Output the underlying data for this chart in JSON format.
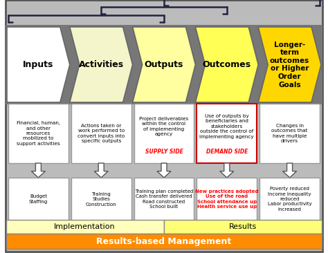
{
  "arrow_colors": [
    "#FFFFFF",
    "#F5F5CC",
    "#FFFFA0",
    "#FFFF55",
    "#FFD700"
  ],
  "arrow_labels": [
    "Inputs",
    "Activities",
    "Outputs",
    "Outcomes",
    "Longer-\nterm\noutcomes\nor Higher\nOrder\nGoals"
  ],
  "desc_texts": [
    "Financial, human,\nand other\nresources\nmobilized to\nsupport activities",
    "Actions taken or\nwork performed to\nconvert inputs into\nspecific outputs",
    "Project deliverables\nwithin the control\nof implementing\nagency",
    "Use of outputs by\nbeneficiaries and\nstakeholders\noutside the control of\nimplementing agency",
    "Changes in\noutcomes that\nhave multiple\ndrivers"
  ],
  "desc_red_suffix": [
    null,
    null,
    "SUPPLY SIDE",
    "DEMAND SIDE",
    null
  ],
  "desc_border_red": [
    false,
    false,
    false,
    true,
    false
  ],
  "ex_texts": [
    "Budget\nStaffing",
    "Training\nStudies\nConstruction",
    "Training plan completed\nCash transfer delivered\nRoad constructed\nSchool built",
    "New practices adopted\nUse of the road\nSchool attendance up\nHealth service use up",
    "Poverty reduced\nIncome inequality\nreduced\nLabor productivity\nincreased"
  ],
  "ex_red": [
    false,
    false,
    false,
    true,
    false
  ],
  "impl_label": "Implementation",
  "impl_color": "#FFFFBB",
  "results_label": "Results",
  "results_color": "#FFFF77",
  "mgmt_label": "Results-based Management",
  "mgmt_color": "#FF8C00",
  "mgmt_text_color": "#FFFFFF",
  "arrow_bg_color": "#888888",
  "outer_bg_color": "#AAAAAA",
  "bracket_color": "#222244"
}
